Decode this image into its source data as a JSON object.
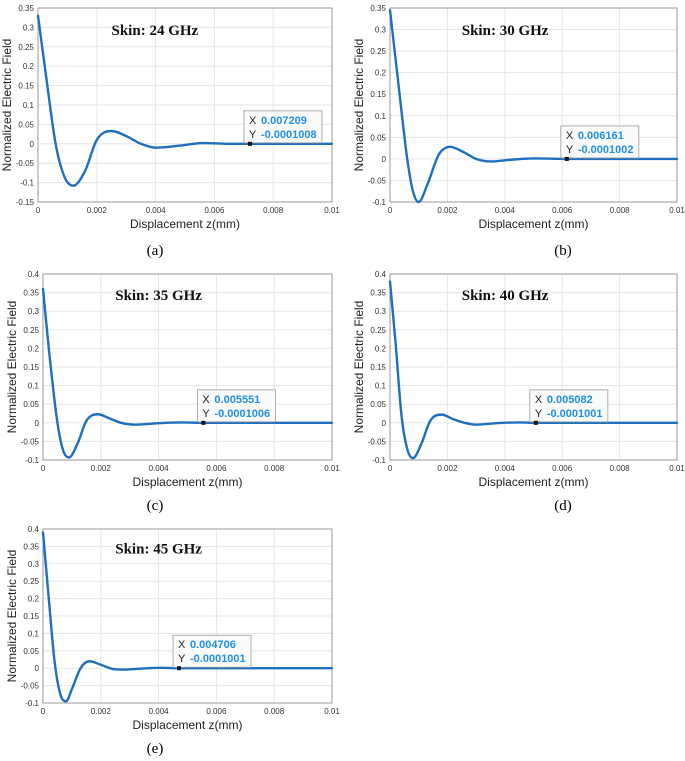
{
  "colors": {
    "line": "#1f6fbf",
    "grid": "#e6e6e6",
    "axis": "#888888",
    "datatip_value": "#1e90e8",
    "datatip_bg": "#fafafa",
    "datatip_border": "#9a9a9a"
  },
  "panels": [
    {
      "label": "(a)",
      "datatip": {
        "x_key": "X",
        "x_val": "0.007209",
        "y_key": "Y",
        "y_val": "-0.0001008"
      }
    },
    {
      "label": "(b)",
      "datatip": {
        "x_key": "X",
        "x_val": "0.006161",
        "y_key": "Y",
        "y_val": "-0.0001002"
      }
    },
    {
      "label": "(c)",
      "datatip": {
        "x_key": "X",
        "x_val": "0.005551",
        "y_key": "Y",
        "y_val": "-0.0001006"
      }
    },
    {
      "label": "(d)",
      "datatip": {
        "x_key": "X",
        "x_val": "0.005082",
        "y_key": "Y",
        "y_val": "-0.0001001"
      }
    },
    {
      "label": "(e)",
      "datatip": {
        "x_key": "X",
        "x_val": "0.004706",
        "y_key": "Y",
        "y_val": "-0.0001001"
      }
    }
  ],
  "chart_data": [
    {
      "type": "line",
      "title": "Skin: 24 GHz",
      "xlabel": "Displacement z(mm)",
      "ylabel": "Normalized Electric Field",
      "xlim": [
        0,
        0.01
      ],
      "ylim": [
        -0.15,
        0.35
      ],
      "xticks": [
        "0",
        "0.002",
        "0.004",
        "0.006",
        "0.008",
        "0.01"
      ],
      "yticks": [
        "-0.15",
        "-0.1",
        "-0.05",
        "0",
        "0.05",
        "0.1",
        "0.15",
        "0.2",
        "0.25",
        "0.3",
        "0.35"
      ],
      "grid": true,
      "series": [
        {
          "x": [
            0,
            0.0003,
            0.0006,
            0.0009,
            0.0012,
            0.0016,
            0.002,
            0.0025,
            0.003,
            0.0035,
            0.004,
            0.0048,
            0.0056,
            0.0065,
            0.0072,
            0.008,
            0.009,
            0.01
          ],
          "y": [
            0.33,
            0.16,
            0.0,
            -0.085,
            -0.108,
            -0.07,
            0.01,
            0.033,
            0.02,
            0.0,
            -0.01,
            -0.005,
            0.002,
            0.0,
            -0.0001,
            0.0,
            0.0,
            0.0
          ]
        }
      ],
      "marker": {
        "x": 0.007209,
        "y": -0.0001008
      }
    },
    {
      "type": "line",
      "title": "Skin: 30 GHz",
      "xlabel": "Displacement z(mm)",
      "ylabel": "Normalized Electric Field",
      "xlim": [
        0,
        0.01
      ],
      "ylim": [
        -0.1,
        0.35
      ],
      "xticks": [
        "0",
        "0.002",
        "0.004",
        "0.006",
        "0.008",
        "0.01"
      ],
      "yticks": [
        "-0.1",
        "-0.05",
        "0",
        "0.05",
        "0.1",
        "0.15",
        "0.2",
        "0.25",
        "0.3",
        "0.35"
      ],
      "grid": true,
      "series": [
        {
          "x": [
            0,
            0.0003,
            0.0006,
            0.0008,
            0.001,
            0.0013,
            0.0017,
            0.0021,
            0.0025,
            0.003,
            0.0035,
            0.0042,
            0.005,
            0.0062,
            0.007,
            0.008,
            0.009,
            0.01
          ],
          "y": [
            0.345,
            0.17,
            0.0,
            -0.075,
            -0.1,
            -0.06,
            0.01,
            0.028,
            0.018,
            0.0,
            -0.006,
            -0.002,
            0.001,
            -0.0001,
            0.0,
            0.0,
            0.0,
            0.0
          ]
        }
      ],
      "marker": {
        "x": 0.006161,
        "y": -0.0001002
      }
    },
    {
      "type": "line",
      "title": "Skin: 35 GHz",
      "xlabel": "Displacement z(mm)",
      "ylabel": "Normalized Electric Field",
      "xlim": [
        0,
        0.01
      ],
      "ylim": [
        -0.1,
        0.4
      ],
      "xticks": [
        "0",
        "0.002",
        "0.004",
        "0.006",
        "0.008",
        "0.01"
      ],
      "yticks": [
        "-0.1",
        "-0.05",
        "0",
        "0.05",
        "0.1",
        "0.15",
        "0.2",
        "0.25",
        "0.3",
        "0.35",
        "0.4"
      ],
      "grid": true,
      "series": [
        {
          "x": [
            0,
            0.0002,
            0.0005,
            0.0007,
            0.0009,
            0.0012,
            0.0015,
            0.0019,
            0.0023,
            0.0027,
            0.0032,
            0.004,
            0.0048,
            0.0056,
            0.0065,
            0.0075,
            0.0088,
            0.01
          ],
          "y": [
            0.36,
            0.2,
            0.0,
            -0.075,
            -0.093,
            -0.055,
            0.005,
            0.023,
            0.012,
            0.0,
            -0.005,
            -0.001,
            0.001,
            -0.0001,
            0.0,
            0.0,
            0.0,
            0.0
          ]
        }
      ],
      "marker": {
        "x": 0.005551,
        "y": -0.0001006
      }
    },
    {
      "type": "line",
      "title": "Skin: 40 GHz",
      "xlabel": "Displacement z(mm)",
      "ylabel": "Normalized Electric Field",
      "xlim": [
        0,
        0.01
      ],
      "ylim": [
        -0.1,
        0.4
      ],
      "xticks": [
        "0",
        "0.002",
        "0.004",
        "0.006",
        "0.008",
        "0.01"
      ],
      "yticks": [
        "-0.1",
        "-0.05",
        "0",
        "0.05",
        "0.1",
        "0.15",
        "0.2",
        "0.25",
        "0.3",
        "0.35",
        "0.4"
      ],
      "grid": true,
      "series": [
        {
          "x": [
            0,
            0.0002,
            0.0004,
            0.0006,
            0.0008,
            0.0011,
            0.0014,
            0.0018,
            0.0022,
            0.0026,
            0.003,
            0.0037,
            0.0045,
            0.0051,
            0.006,
            0.0072,
            0.0085,
            0.01
          ],
          "y": [
            0.38,
            0.21,
            0.02,
            -0.07,
            -0.095,
            -0.055,
            0.005,
            0.022,
            0.01,
            0.0,
            -0.005,
            -0.001,
            0.001,
            -0.0001,
            0.0,
            0.0,
            0.0,
            0.0
          ]
        }
      ],
      "marker": {
        "x": 0.005082,
        "y": -0.0001001
      }
    },
    {
      "type": "line",
      "title": "Skin: 45 GHz",
      "xlabel": "Displacement z(mm)",
      "ylabel": "Normalized Electric Field",
      "xlim": [
        0,
        0.01
      ],
      "ylim": [
        -0.1,
        0.4
      ],
      "xticks": [
        "0",
        "0.002",
        "0.004",
        "0.006",
        "0.008",
        "0.01"
      ],
      "yticks": [
        "-0.1",
        "-0.05",
        "0",
        "0.05",
        "0.1",
        "0.15",
        "0.2",
        "0.25",
        "0.3",
        "0.35",
        "0.4"
      ],
      "grid": true,
      "series": [
        {
          "x": [
            0,
            0.0002,
            0.0004,
            0.0006,
            0.0008,
            0.001,
            0.0013,
            0.0016,
            0.002,
            0.0024,
            0.0028,
            0.0034,
            0.0041,
            0.0047,
            0.0055,
            0.0068,
            0.0082,
            0.01
          ],
          "y": [
            0.39,
            0.2,
            0.02,
            -0.075,
            -0.095,
            -0.06,
            0.0,
            0.02,
            0.01,
            -0.002,
            -0.004,
            -0.001,
            0.001,
            -0.0001,
            0.0,
            0.0,
            0.0,
            0.0
          ]
        }
      ],
      "marker": {
        "x": 0.004706,
        "y": -0.0001001
      }
    }
  ]
}
